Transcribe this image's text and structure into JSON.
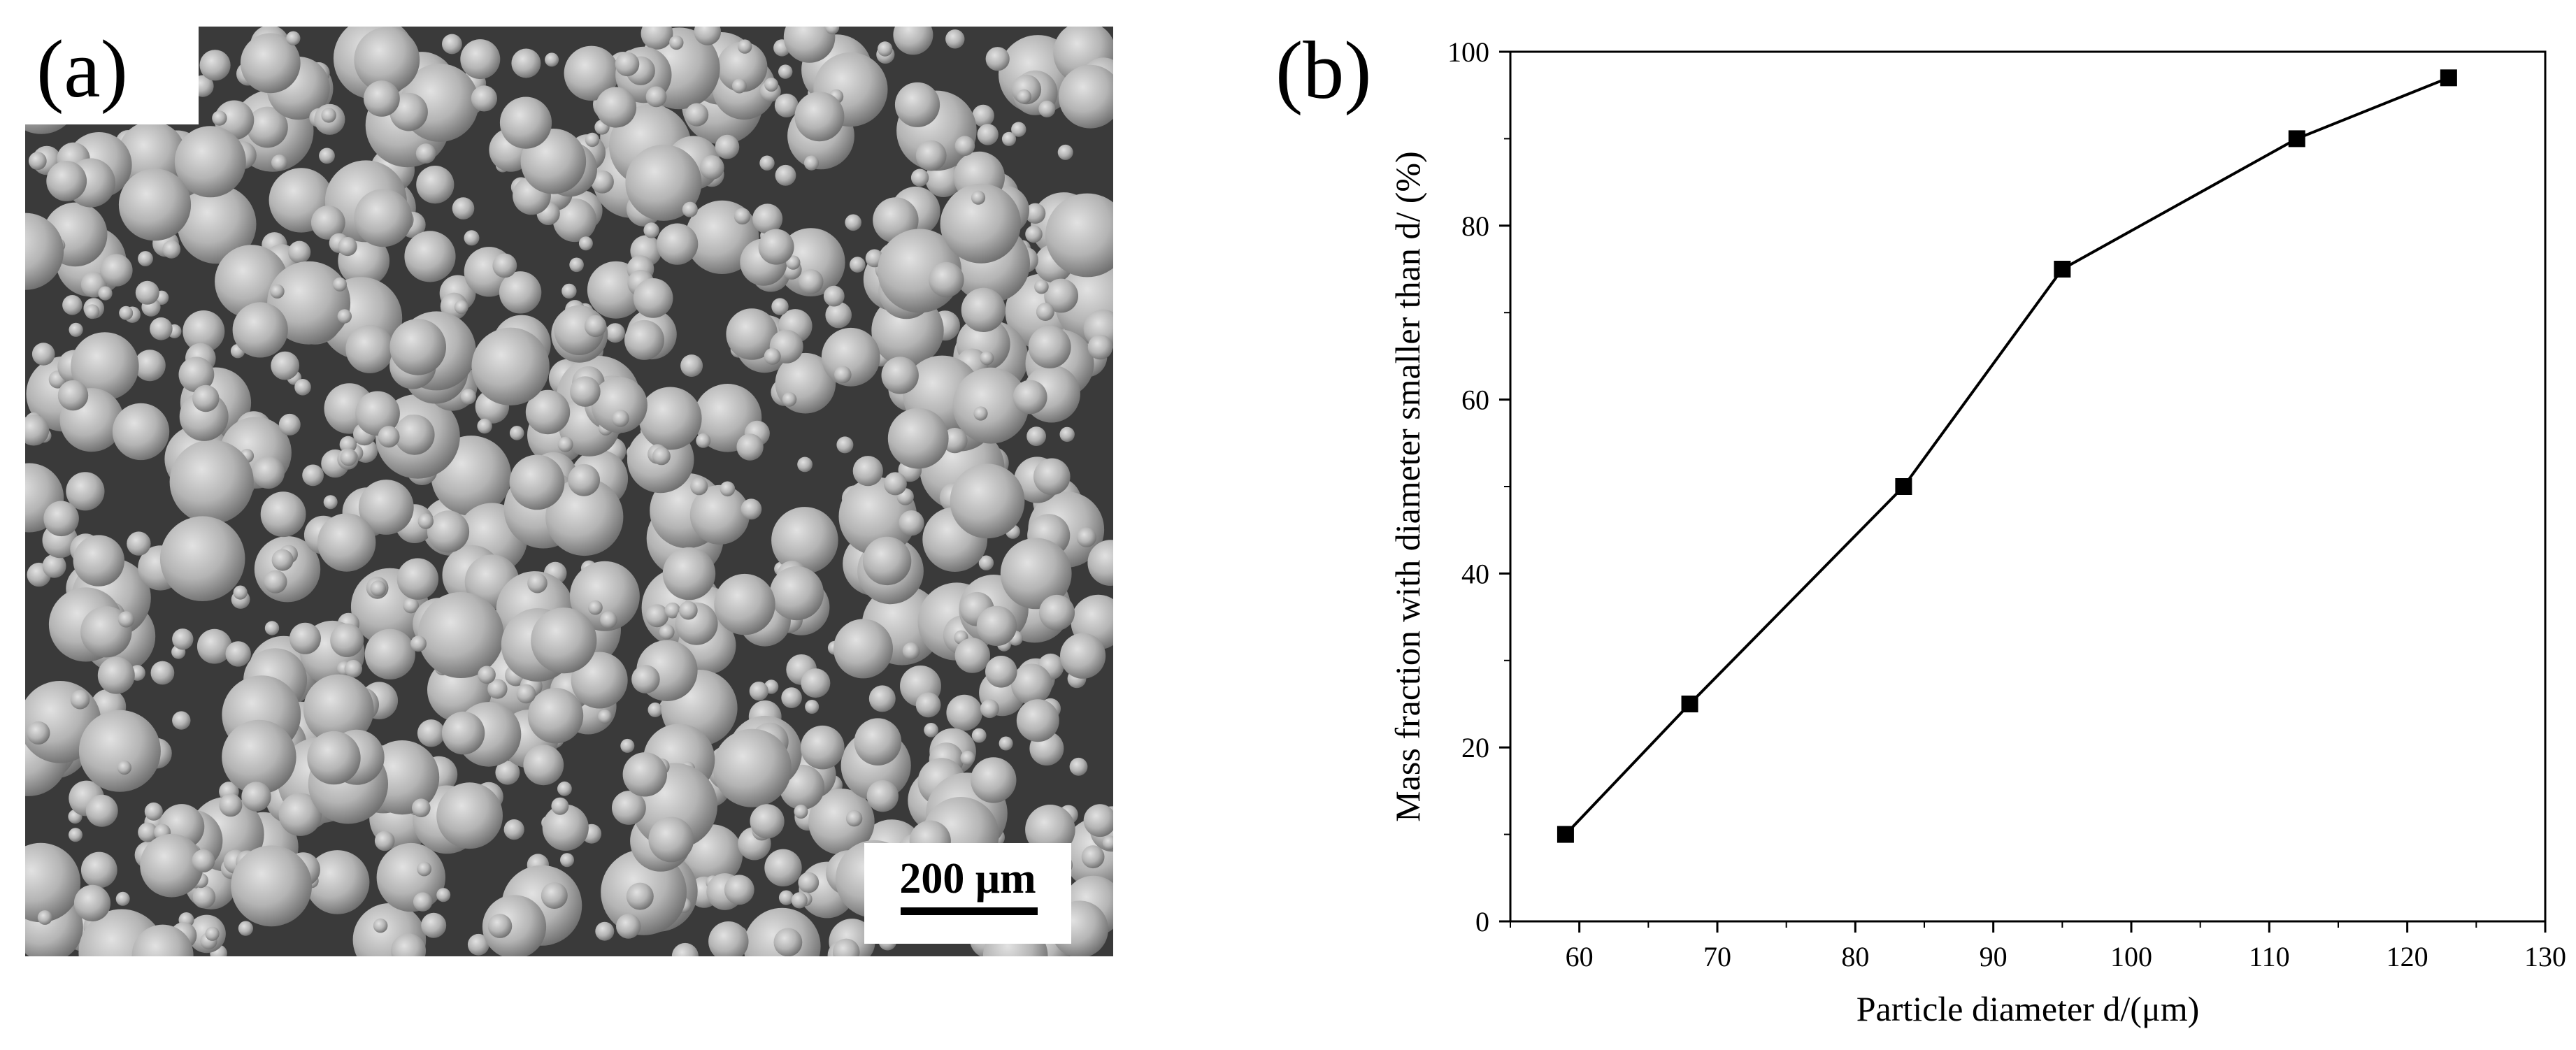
{
  "panel_a": {
    "label": "(a)",
    "scale_bar_text": "200 μm",
    "scale_bar_value_um": 200
  },
  "panel_b": {
    "label": "(b)"
  },
  "chart_data": {
    "type": "line",
    "title": "",
    "xlabel": "Particle diameter d/(μm)",
    "ylabel": "Mass fraction with diameter smaller than d/ (%)",
    "xlim": [
      55,
      130
    ],
    "ylim": [
      0,
      100
    ],
    "xticks": [
      60,
      70,
      80,
      90,
      100,
      110,
      120,
      130
    ],
    "yticks": [
      0,
      20,
      40,
      60,
      80,
      100
    ],
    "grid": false,
    "marker": "square",
    "series": [
      {
        "x": [
          59,
          68,
          83.5,
          95,
          112,
          123
        ],
        "y": [
          10,
          25,
          50,
          75,
          90,
          97
        ]
      }
    ],
    "colors": {
      "line": "#000000",
      "marker": "#000000"
    }
  }
}
